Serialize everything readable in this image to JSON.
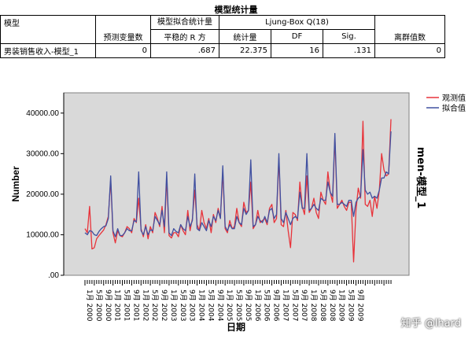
{
  "table": {
    "title": "模型统计量",
    "headers": {
      "model": "模型",
      "predictors": "预测变量数",
      "fit_group": "模型拟合统计量",
      "stationary_r2": "平稳的 R 方",
      "ljung_group": "Ljung-Box Q(18)",
      "statistic": "统计量",
      "df": "DF",
      "sig": "Sig.",
      "outliers": "离群值数"
    },
    "row": {
      "model": "男装销售收入-模型_1",
      "predictors": "0",
      "stationary_r2": ".687",
      "statistic": "22.375",
      "df": "16",
      "sig": ".131",
      "outliers": "0"
    }
  },
  "chart_data": {
    "type": "line",
    "ylabel": "Number",
    "xlabel": "日期",
    "side_label": "men-模型_1",
    "ylim": [
      0,
      45000
    ],
    "yticks": [
      0,
      10000,
      20000,
      30000,
      40000
    ],
    "ytick_labels": [
      ".00",
      "10000.00",
      "20000.00",
      "30000.00",
      "40000.00"
    ],
    "xtick_labels": [
      "1月 2000",
      "5月 2000",
      "9月 2000",
      "1月 2001",
      "5月 2001",
      "9月 2001",
      "1月 2002",
      "5月 2002",
      "9月 2002",
      "1月 2003",
      "5月 2003",
      "9月 2003",
      "1月 2004",
      "5月 2004",
      "9月 2004",
      "1月 2005",
      "5月 2005",
      "9月 2005",
      "1月 2006",
      "5月 2006",
      "9月 2006",
      "1月 2007",
      "5月 2007",
      "9月 2007",
      "1月 2008",
      "5月 2008",
      "9月 2008",
      "1月 2009",
      "5月 2009",
      "9月 2009"
    ],
    "background": "#d9d9d9",
    "series": [
      {
        "name": "观测值",
        "color": "#e8333a",
        "values": [
          11500,
          10500,
          17000,
          6500,
          6800,
          9000,
          9800,
          10500,
          11200,
          12500,
          14500,
          23500,
          10500,
          8000,
          11000,
          9800,
          9500,
          10500,
          12000,
          11500,
          10500,
          14000,
          13000,
          19000,
          11500,
          9500,
          12500,
          9000,
          12000,
          10500,
          15500,
          14000,
          12000,
          17000,
          10500,
          24000,
          9800,
          9200,
          10500,
          10500,
          9500,
          12500,
          11000,
          10000,
          16000,
          11000,
          14000,
          21000,
          12500,
          11000,
          16000,
          13000,
          11500,
          14000,
          10500,
          15000,
          13000,
          16500,
          14000,
          25500,
          11500,
          10500,
          13500,
          11500,
          12000,
          16500,
          13000,
          12000,
          18000,
          15500,
          16000,
          23000,
          11500,
          12500,
          16000,
          13000,
          13500,
          14000,
          12500,
          16500,
          17500,
          13000,
          14000,
          29000,
          12500,
          12000,
          16000,
          11000,
          6800,
          15500,
          15000,
          13500,
          23000,
          17000,
          15000,
          24500,
          15500,
          16500,
          19000,
          15500,
          14000,
          20500,
          18500,
          17500,
          25500,
          20500,
          18000,
          34000,
          16500,
          17500,
          18500,
          17000,
          16000,
          18000,
          18000,
          3300,
          16000,
          21500,
          19000,
          38000,
          17500,
          17000,
          18500,
          14500,
          19500,
          16500,
          21000,
          30000,
          26000,
          24500,
          25000,
          38500
        ]
      },
      {
        "name": "拟合值",
        "color": "#4050a0",
        "values": [
          10500,
          10000,
          11000,
          10800,
          10000,
          9800,
          10800,
          11500,
          12000,
          12200,
          14000,
          24500,
          11000,
          9500,
          11500,
          9800,
          9800,
          10500,
          11500,
          11000,
          11000,
          13500,
          13200,
          25500,
          11000,
          10000,
          12000,
          10000,
          11200,
          11000,
          14500,
          13500,
          12500,
          16000,
          12000,
          25500,
          10500,
          9800,
          11500,
          10800,
          10500,
          12500,
          11500,
          11000,
          14500,
          12000,
          13500,
          25000,
          11500,
          11000,
          13000,
          12000,
          11000,
          13500,
          12000,
          14500,
          13500,
          16000,
          14000,
          27000,
          12000,
          11000,
          12500,
          11500,
          11500,
          14500,
          13000,
          12500,
          16500,
          15000,
          16000,
          28500,
          12000,
          12500,
          14500,
          13500,
          13000,
          14500,
          13000,
          16000,
          16500,
          14000,
          15000,
          30000,
          14000,
          13000,
          15500,
          14000,
          12500,
          14000,
          14500,
          14000,
          20500,
          16500,
          16500,
          30000,
          16000,
          16500,
          17500,
          16500,
          16000,
          19000,
          18500,
          18500,
          23000,
          20500,
          19500,
          35000,
          17500,
          17500,
          18000,
          17500,
          17000,
          18500,
          18500,
          14500,
          18000,
          19000,
          19500,
          31000,
          21000,
          20000,
          20500,
          19000,
          19500,
          19000,
          21000,
          24000,
          24000,
          25500,
          25000,
          35500
        ]
      }
    ]
  }
}
